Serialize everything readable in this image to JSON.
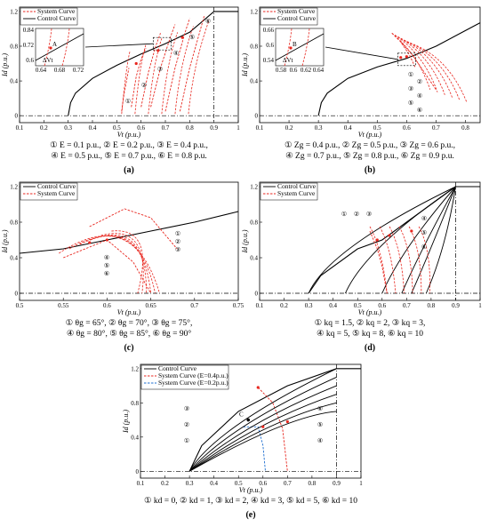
{
  "figure": {
    "panels": [
      {
        "id": "a",
        "label": "(a)",
        "xlabel": "V_t (p.u.)",
        "ylabel": "I_d (p.u.)",
        "xlim": [
          0.1,
          1.0
        ],
        "ylim": [
          -0.08,
          1.25
        ],
        "xticks": [
          "0.1",
          "0.2",
          "0.3",
          "0.4",
          "0.5",
          "0.6",
          "0.7",
          "0.8",
          "0.9",
          "1"
        ],
        "yticks": [
          "0",
          "0.4",
          "0.8",
          "1.2"
        ],
        "legend": [
          "System Curve",
          "Control Curve"
        ],
        "circled": [
          "①",
          "②",
          "③",
          "④",
          "⑤",
          "⑥"
        ],
        "caption_lines": [
          "① E = 0.1 p.u., ② E = 0.2 p.u., ③ E = 0.4 p.u.,",
          "④ E = 0.5 p.u., ⑤ E = 0.7 p.u., ⑥ E = 0.8 p.u."
        ],
        "inset": {
          "xticks": [
            "0.64",
            "0.68",
            "0.72"
          ],
          "yticks": [
            "0.6",
            "0.72",
            "0.84"
          ],
          "point": "A",
          "delta": "ΔV_t"
        }
      },
      {
        "id": "b",
        "label": "(b)",
        "xlabel": "V_t (p.u.)",
        "ylabel": "I_d (p.u.)",
        "xlim": [
          0.1,
          0.85
        ],
        "ylim": [
          -0.08,
          1.25
        ],
        "xticks": [
          "0.1",
          "0.2",
          "0.3",
          "0.4",
          "0.5",
          "0.6",
          "0.7",
          "0.8"
        ],
        "yticks": [
          "0",
          "0.4",
          "0.8",
          "1.2"
        ],
        "legend": [
          "System Curve",
          "Control Curve"
        ],
        "circled": [
          "①",
          "②",
          "③",
          "④",
          "⑤",
          "⑥"
        ],
        "caption_lines": [
          "① Z_g = 0.4 p.u., ② Z_g = 0.5 p.u., ③ Z_g = 0.6 p.u.,",
          "④ Z_g = 0.7 p.u., ⑤ Z_g = 0.8 p.u., ⑥ Z_g = 0.9 p.u."
        ],
        "inset": {
          "xticks": [
            "0.58",
            "0.6",
            "0.62",
            "0.64"
          ],
          "yticks": [
            "0.54",
            "0.6",
            "0.66"
          ],
          "point": "B",
          "delta": "ΔV_t"
        }
      },
      {
        "id": "c",
        "label": "(c)",
        "xlabel": "V_t (p.u.)",
        "ylabel": "I_d (p.u.)",
        "xlim": [
          0.5,
          0.75
        ],
        "ylim": [
          -0.08,
          1.25
        ],
        "xticks": [
          "0.5",
          "0.55",
          "0.6",
          "0.65",
          "0.7",
          "0.75"
        ],
        "yticks": [
          "0",
          "0.4",
          "0.8",
          "1.2"
        ],
        "legend": [
          "Control Curve",
          "System Curve"
        ],
        "circled": [
          "①",
          "②",
          "③",
          "④",
          "⑤",
          "⑥"
        ],
        "caption_lines": [
          "① θ_g = 65°, ② θ_g = 70°, ③ θ_g = 75°,",
          "④ θ_g = 80°, ⑤ θ_g = 85°, ⑥ θ_g = 90°"
        ]
      },
      {
        "id": "d",
        "label": "(d)",
        "xlabel": "V_t (p.u.)",
        "ylabel": "I_d (p.u.)",
        "xlim": [
          0.1,
          1.0
        ],
        "ylim": [
          -0.08,
          1.25
        ],
        "xticks": [
          "0.1",
          "0.2",
          "0.3",
          "0.4",
          "0.5",
          "0.6",
          "0.7",
          "0.8",
          "0.9",
          "1"
        ],
        "yticks": [
          "0",
          "0.4",
          "0.8",
          "1.2"
        ],
        "legend": [
          "Control Curve",
          "System Curve"
        ],
        "circled": [
          "①",
          "②",
          "③",
          "④",
          "⑤",
          "⑥"
        ],
        "caption_lines": [
          "① k_q = 1.5, ② k_q = 2, ③ k_q = 3,",
          "④ k_q = 5, ⑤ k_q = 8, ⑥ k_q = 10"
        ]
      },
      {
        "id": "e",
        "label": "(e)",
        "xlabel": "V_t (p.u.)",
        "ylabel": "I_d (p.u.)",
        "xlim": [
          0.1,
          1.0
        ],
        "ylim": [
          -0.08,
          1.25
        ],
        "xticks": [
          "0.1",
          "0.2",
          "0.3",
          "0.4",
          "0.5",
          "0.6",
          "0.7",
          "0.8",
          "0.9",
          "1"
        ],
        "yticks": [
          "0",
          "0.4",
          "0.8",
          "1.2"
        ],
        "legend": [
          "Control Curve",
          "System Curve (E=0.4p.u.)",
          "System Curve (E=0.2p.u.)"
        ],
        "circled": [
          "①",
          "②",
          "③",
          "④",
          "⑤",
          "⑥"
        ],
        "point": "C",
        "caption_lines": [
          "① k_d = 0, ② k_d = 1, ③ k_d = 2, ④ k_d = 3, ⑤ k_d = 5, ⑥ k_d = 10"
        ]
      }
    ],
    "colors": {
      "system": "#e8271f",
      "control": "#000000",
      "system2": "#1f6fd0",
      "point": "#e8271f"
    }
  },
  "chart_data": [
    {
      "type": "line",
      "panel": "a",
      "x_unit": "p.u.",
      "series": [
        {
          "name": "Control Curve",
          "x": [
            0.3,
            0.31,
            0.33,
            0.4,
            0.5,
            0.6,
            0.7,
            0.8,
            0.9,
            0.95,
            1.0
          ],
          "y": [
            0,
            0.15,
            0.26,
            0.43,
            0.58,
            0.71,
            0.83,
            0.96,
            1.2,
            1.2,
            1.2
          ]
        },
        {
          "name": "System Curve ①",
          "x": [
            0.52,
            0.53,
            0.54,
            0.55
          ],
          "y": [
            0.05,
            0.25,
            0.4,
            0.55
          ]
        },
        {
          "name": "System Curve ②",
          "x": [
            0.56,
            0.58,
            0.6,
            0.62
          ],
          "y": [
            0.1,
            0.45,
            0.65,
            0.78
          ]
        },
        {
          "name": "System Curve ③",
          "x": [
            0.6,
            0.63,
            0.66,
            0.68
          ],
          "y": [
            0.1,
            0.5,
            0.8,
            0.95
          ]
        },
        {
          "name": "System Curve ④",
          "x": [
            0.64,
            0.68,
            0.72,
            0.74
          ],
          "y": [
            0.1,
            0.55,
            0.9,
            1.05
          ]
        },
        {
          "name": "System Curve ⑤",
          "x": [
            0.7,
            0.74,
            0.78,
            0.8
          ],
          "y": [
            0.05,
            0.55,
            0.95,
            1.12
          ]
        },
        {
          "name": "System Curve ⑥",
          "x": [
            0.76,
            0.8,
            0.84,
            0.86
          ],
          "y": [
            0.05,
            0.55,
            0.95,
            1.15
          ]
        }
      ]
    },
    {
      "type": "line",
      "panel": "b",
      "x_unit": "p.u.",
      "series": [
        {
          "name": "Control Curve",
          "x": [
            0.3,
            0.31,
            0.33,
            0.4,
            0.5,
            0.6,
            0.7,
            0.8,
            0.85
          ],
          "y": [
            0,
            0.15,
            0.26,
            0.43,
            0.56,
            0.66,
            0.8,
            0.98,
            1.07
          ]
        },
        {
          "name": "System Curve ①",
          "x": [
            0.55,
            0.58,
            0.61,
            0.63
          ],
          "y": [
            0.95,
            0.85,
            0.7,
            0.55
          ]
        },
        {
          "name": "System Curve ⑥",
          "x": [
            0.58,
            0.62,
            0.66,
            0.7
          ],
          "y": [
            0.85,
            0.7,
            0.5,
            0.3
          ]
        }
      ]
    },
    {
      "type": "line",
      "panel": "c",
      "x_unit": "p.u.",
      "series": [
        {
          "name": "Control Curve",
          "x": [
            0.5,
            0.55,
            0.6,
            0.65,
            0.7,
            0.75
          ],
          "y": [
            0.45,
            0.5,
            0.6,
            0.7,
            0.8,
            0.92
          ]
        },
        {
          "name": "System Curve ①",
          "x": [
            0.58,
            0.62,
            0.65,
            0.68
          ],
          "y": [
            0.75,
            0.95,
            0.85,
            0.5
          ]
        },
        {
          "name": "System Curve ⑥",
          "x": [
            0.55,
            0.6,
            0.63,
            0.65
          ],
          "y": [
            0.4,
            0.6,
            0.35,
            0
          ]
        }
      ]
    },
    {
      "type": "line",
      "panel": "d",
      "x_unit": "p.u.",
      "series": [
        {
          "name": "Control Curve",
          "x": [
            0.3,
            0.35,
            0.5,
            0.6,
            0.7,
            0.9,
            1.0
          ],
          "y": [
            0,
            0.2,
            0.5,
            0.6,
            0.8,
            1.2,
            1.2
          ]
        },
        {
          "name": "System Curve",
          "x": [
            0.55,
            0.58,
            0.6,
            0.62
          ],
          "y": [
            0.7,
            0.5,
            0.3,
            0
          ]
        }
      ]
    },
    {
      "type": "line",
      "panel": "e",
      "x_unit": "p.u.",
      "series": [
        {
          "name": "Control Curve",
          "x": [
            0.3,
            0.35,
            0.5,
            0.7,
            0.9,
            1.0
          ],
          "y": [
            0,
            0.3,
            0.7,
            1.0,
            1.2,
            1.2
          ]
        },
        {
          "name": "System Curve (E=0.4p.u.)",
          "x": [
            0.58,
            0.64,
            0.68,
            0.7
          ],
          "y": [
            0.98,
            0.8,
            0.5,
            0
          ]
        },
        {
          "name": "System Curve (E=0.2p.u.)",
          "x": [
            0.52,
            0.58,
            0.6,
            0.61
          ],
          "y": [
            0.52,
            0.52,
            0.3,
            0
          ]
        }
      ]
    }
  ]
}
